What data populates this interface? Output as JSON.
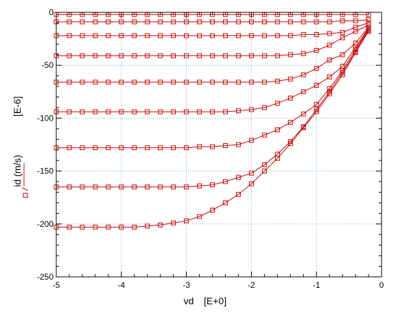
{
  "chart_data": {
    "type": "line",
    "xlabel": "vd",
    "xlabel_unit": "[E+0]",
    "ylabel": "id (m/s)",
    "ylabel_unit": "[E-6]",
    "xlim": [
      -5,
      0
    ],
    "ylim": [
      -250,
      0
    ],
    "x_ticks": [
      "-5",
      "-4",
      "-3",
      "-2",
      "-1",
      "0"
    ],
    "y_ticks": [
      "0",
      "-50",
      "-100",
      "-150",
      "-200",
      "-250"
    ],
    "grid": true,
    "series_color": "#cc0000",
    "grid_color": "#6fa8dc",
    "markers": "open-square",
    "x": [
      -5.0,
      -4.8,
      -4.6,
      -4.4,
      -4.2,
      -4.0,
      -3.8,
      -3.6,
      -3.4,
      -3.2,
      -3.0,
      -2.8,
      -2.6,
      -2.4,
      -2.2,
      -2.0,
      -1.8,
      -1.6,
      -1.4,
      -1.2,
      -1.0,
      -0.8,
      -0.6,
      -0.4,
      -0.2
    ],
    "series": [
      {
        "values": [
          -203,
          -203,
          -203,
          -203,
          -203,
          -203,
          -203,
          -202,
          -201,
          -199,
          -197,
          -193,
          -187,
          -180,
          -172,
          -162,
          -150,
          -138,
          -124,
          -109,
          -94,
          -77,
          -59,
          -38,
          -18
        ]
      },
      {
        "values": [
          -165,
          -165,
          -165,
          -165,
          -165,
          -165,
          -165,
          -165,
          -165,
          -165,
          -165,
          -164,
          -163,
          -160,
          -156,
          -152,
          -144,
          -134,
          -122,
          -108,
          -92,
          -75,
          -57,
          -37,
          -17
        ]
      },
      {
        "values": [
          -128,
          -128,
          -128,
          -128,
          -128,
          -128,
          -128,
          -128,
          -128,
          -128,
          -128,
          -127,
          -127,
          -126,
          -125,
          -121,
          -116,
          -111,
          -104,
          -96,
          -87,
          -72,
          -55,
          -35,
          -16
        ]
      },
      {
        "values": [
          -94,
          -94,
          -94,
          -94,
          -94,
          -94,
          -94,
          -94,
          -94,
          -94,
          -94,
          -94,
          -94,
          -94,
          -93,
          -92,
          -90,
          -86,
          -81,
          -75,
          -69,
          -61,
          -51,
          -33,
          -15
        ]
      },
      {
        "values": [
          -66,
          -66,
          -66,
          -66,
          -66,
          -66,
          -66,
          -66,
          -66,
          -66,
          -66,
          -66,
          -66,
          -66,
          -66,
          -66,
          -66,
          -65,
          -63,
          -59,
          -53,
          -45,
          -40,
          -29,
          -14
        ]
      },
      {
        "values": [
          -41,
          -41,
          -41,
          -41,
          -41,
          -41,
          -41,
          -41,
          -41,
          -41,
          -41,
          -41,
          -41,
          -41,
          -41,
          -41,
          -41,
          -41,
          -40,
          -39,
          -36,
          -31,
          -24,
          -18,
          -12
        ]
      },
      {
        "values": [
          -22,
          -22,
          -22,
          -22,
          -22,
          -22,
          -22,
          -22,
          -22,
          -22,
          -22,
          -22,
          -22,
          -22,
          -22,
          -22,
          -22,
          -22,
          -22,
          -21,
          -21,
          -20,
          -19,
          -14,
          -10
        ]
      },
      {
        "values": [
          -9,
          -9,
          -9,
          -9,
          -9,
          -9,
          -9,
          -9,
          -9,
          -9,
          -9,
          -9,
          -9,
          -9,
          -9,
          -9,
          -9,
          -9,
          -9,
          -9,
          -9,
          -9,
          -8,
          -8,
          -7
        ]
      },
      {
        "values": [
          -2,
          -2,
          -2,
          -2,
          -2,
          -2,
          -2,
          -2,
          -2,
          -2,
          -2,
          -2,
          -2,
          -2,
          -2,
          -2,
          -2,
          -2,
          -2,
          -2,
          -2,
          -2,
          -2,
          -2,
          -2
        ]
      }
    ]
  }
}
